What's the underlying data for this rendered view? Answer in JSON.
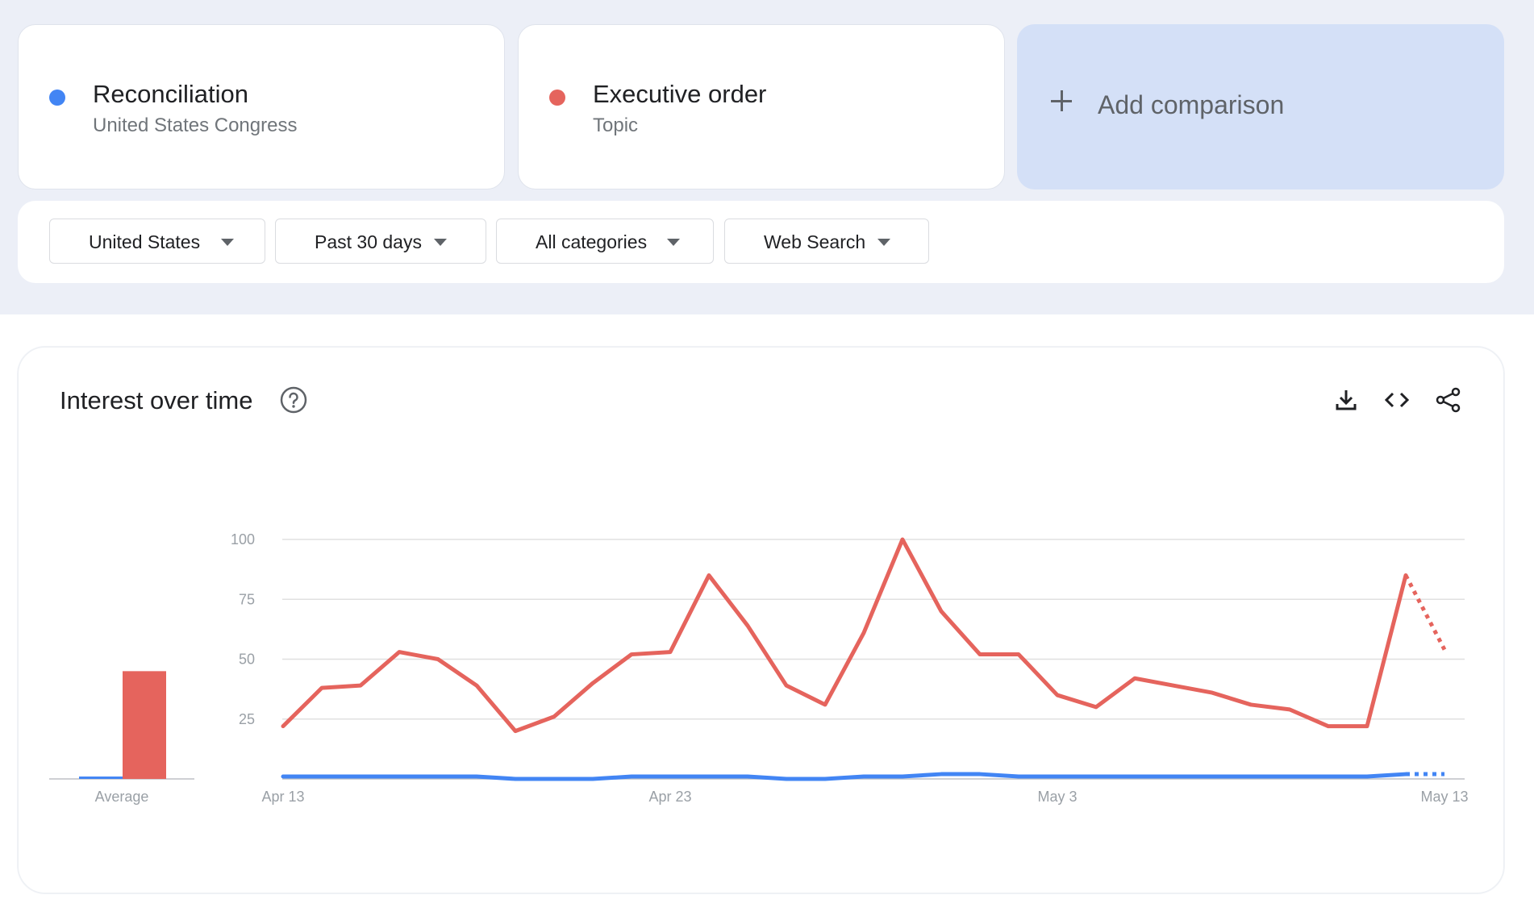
{
  "terms": [
    {
      "name": "Reconciliation",
      "subtitle": "United States Congress",
      "color": "#4285f4"
    },
    {
      "name": "Executive order",
      "subtitle": "Topic",
      "color": "#e5645d"
    }
  ],
  "add_comparison": {
    "label": "Add comparison",
    "icon": "plus-icon"
  },
  "filters": [
    {
      "label": "United States",
      "icon": "caret-down-icon"
    },
    {
      "label": "Past 30 days",
      "icon": "caret-down-icon"
    },
    {
      "label": "All categories",
      "icon": "caret-down-icon"
    },
    {
      "label": "Web Search",
      "icon": "caret-down-icon"
    }
  ],
  "chart_section": {
    "title": "Interest over time",
    "icons": [
      "help-icon",
      "download-icon",
      "embed-code-icon",
      "share-icon"
    ],
    "average_label": "Average"
  },
  "colors": {
    "blue": "#4285f4",
    "red": "#e5645d",
    "grid": "#e0e0e0",
    "band": "#eceff7",
    "add_card": "#d4e0f7"
  },
  "chart_data": {
    "type": "line",
    "x": [
      "Apr 13",
      "Apr 14",
      "Apr 15",
      "Apr 16",
      "Apr 17",
      "Apr 18",
      "Apr 19",
      "Apr 20",
      "Apr 21",
      "Apr 22",
      "Apr 23",
      "Apr 24",
      "Apr 25",
      "Apr 26",
      "Apr 27",
      "Apr 28",
      "Apr 29",
      "Apr 30",
      "May 1",
      "May 2",
      "May 3",
      "May 4",
      "May 5",
      "May 6",
      "May 7",
      "May 8",
      "May 9",
      "May 10",
      "May 11",
      "May 12",
      "May 13"
    ],
    "x_tick_labels": [
      "Apr 13",
      "Apr 23",
      "May 3",
      "May 13"
    ],
    "y_ticks": [
      25,
      50,
      75,
      100
    ],
    "ylim": [
      0,
      100
    ],
    "grid": true,
    "partial_last_point": true,
    "series": [
      {
        "name": "Reconciliation",
        "color": "#4285f4",
        "values": [
          1,
          1,
          1,
          1,
          1,
          1,
          0,
          0,
          0,
          1,
          1,
          1,
          1,
          0,
          0,
          1,
          1,
          2,
          2,
          1,
          1,
          1,
          1,
          1,
          1,
          1,
          1,
          1,
          1,
          2,
          2
        ],
        "average": 1
      },
      {
        "name": "Executive order",
        "color": "#e5645d",
        "values": [
          22,
          38,
          39,
          53,
          50,
          39,
          20,
          26,
          40,
          52,
          53,
          85,
          64,
          39,
          31,
          61,
          100,
          70,
          52,
          52,
          35,
          30,
          42,
          39,
          36,
          31,
          29,
          22,
          22,
          85,
          54
        ],
        "average": 45
      }
    ]
  }
}
